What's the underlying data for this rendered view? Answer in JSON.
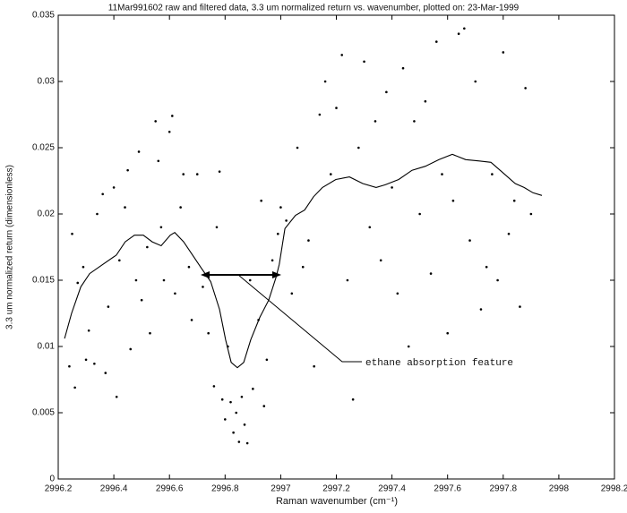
{
  "chart_data": {
    "type": "scatter",
    "title": "11Mar991602 raw and filtered data, 3.3 um normalized return vs. wavenumber, plotted on: 23-Mar-1999",
    "x_label": "Raman wavenumber (cm⁻¹)",
    "y_label": "3.3 um normalized return (dimensionless)",
    "annotation": "ethane absorption feature",
    "xlim": [
      2996.2,
      2998.2
    ],
    "ylim": [
      0,
      0.035
    ],
    "xticks": [
      2996.2,
      2996.4,
      2996.6,
      2996.8,
      2997,
      2997.2,
      2997.4,
      2997.6,
      2997.8,
      2998,
      2998.2
    ],
    "yticks": [
      0,
      0.005,
      0.01,
      0.015,
      0.02,
      0.025,
      0.03,
      0.035
    ],
    "grid": false,
    "series": [
      {
        "type": "scatter",
        "color": "#000000",
        "x": [
          2996.24,
          2996.25,
          2996.26,
          2996.27,
          2996.29,
          2996.3,
          2996.31,
          2996.33,
          2996.34,
          2996.36,
          2996.37,
          2996.38,
          2996.4,
          2996.41,
          2996.42,
          2996.44,
          2996.45,
          2996.46,
          2996.48,
          2996.49,
          2996.5,
          2996.52,
          2996.53,
          2996.55,
          2996.56,
          2996.57,
          2996.58,
          2996.6,
          2996.61,
          2996.62,
          2996.64,
          2996.65,
          2996.67,
          2996.68,
          2996.7,
          2996.72,
          2996.74,
          2996.76,
          2996.77,
          2996.78,
          2996.79,
          2996.8,
          2996.81,
          2996.82,
          2996.83,
          2996.84,
          2996.85,
          2996.86,
          2996.87,
          2996.88,
          2996.89,
          2996.9,
          2996.92,
          2996.93,
          2996.94,
          2996.95,
          2996.97,
          2996.99,
          2997.0,
          2997.02,
          2997.04,
          2997.06,
          2997.08,
          2997.1,
          2997.12,
          2997.14,
          2997.16,
          2997.18,
          2997.2,
          2997.22,
          2997.24,
          2997.26,
          2997.28,
          2997.3,
          2997.32,
          2997.34,
          2997.36,
          2997.38,
          2997.4,
          2997.42,
          2997.44,
          2997.46,
          2997.48,
          2997.5,
          2997.52,
          2997.54,
          2997.56,
          2997.58,
          2997.6,
          2997.62,
          2997.64,
          2997.66,
          2997.68,
          2997.7,
          2997.72,
          2997.74,
          2997.76,
          2997.78,
          2997.8,
          2997.82,
          2997.84,
          2997.86,
          2997.88,
          2997.9
        ],
        "values": [
          0.0085,
          0.0185,
          0.0069,
          0.0148,
          0.016,
          0.009,
          0.0112,
          0.0087,
          0.02,
          0.0215,
          0.008,
          0.013,
          0.022,
          0.0062,
          0.0165,
          0.0205,
          0.0233,
          0.0098,
          0.015,
          0.0247,
          0.0135,
          0.0175,
          0.011,
          0.027,
          0.024,
          0.019,
          0.015,
          0.0262,
          0.0274,
          0.014,
          0.0205,
          0.023,
          0.016,
          0.012,
          0.023,
          0.0145,
          0.011,
          0.007,
          0.019,
          0.0232,
          0.006,
          0.0045,
          0.01,
          0.0058,
          0.0035,
          0.005,
          0.0028,
          0.0062,
          0.0041,
          0.0027,
          0.015,
          0.0068,
          0.012,
          0.021,
          0.0055,
          0.009,
          0.0165,
          0.0185,
          0.0205,
          0.0195,
          0.014,
          0.025,
          0.016,
          0.018,
          0.0085,
          0.0275,
          0.03,
          0.023,
          0.028,
          0.032,
          0.015,
          0.006,
          0.025,
          0.0315,
          0.019,
          0.027,
          0.0165,
          0.0292,
          0.022,
          0.014,
          0.031,
          0.01,
          0.027,
          0.02,
          0.0285,
          0.0155,
          0.033,
          0.023,
          0.011,
          0.021,
          0.0336,
          0.034,
          0.018,
          0.03,
          0.0128,
          0.016,
          0.023,
          0.015,
          0.0322,
          0.0185,
          0.021,
          0.013,
          0.0295,
          0.02
        ]
      },
      {
        "type": "line",
        "color": "#000000",
        "x": [
          2996.223,
          2996.248,
          2996.281,
          2996.313,
          2996.361,
          2996.409,
          2996.441,
          2996.474,
          2996.506,
          2996.538,
          2996.57,
          2996.603,
          2996.619,
          2996.651,
          2996.683,
          2996.715,
          2996.748,
          2996.78,
          2996.802,
          2996.822,
          2996.844,
          2996.867,
          2996.892,
          2996.925,
          2996.957,
          2996.983,
          2996.995,
          2997.015,
          2997.053,
          2997.086,
          2997.118,
          2997.15,
          2997.198,
          2997.247,
          2997.295,
          2997.343,
          2997.376,
          2997.424,
          2997.472,
          2997.52,
          2997.569,
          2997.617,
          2997.665,
          2997.714,
          2997.756,
          2997.794,
          2997.843,
          2997.875,
          2997.907,
          2997.939
        ],
        "values": [
          0.0106,
          0.0125,
          0.0145,
          0.0155,
          0.0162,
          0.0169,
          0.0179,
          0.0184,
          0.0184,
          0.0179,
          0.0176,
          0.0184,
          0.0186,
          0.0179,
          0.0169,
          0.0159,
          0.0149,
          0.0128,
          0.0105,
          0.0088,
          0.0084,
          0.0088,
          0.0105,
          0.0122,
          0.0135,
          0.0152,
          0.0162,
          0.0189,
          0.0199,
          0.0203,
          0.0213,
          0.022,
          0.0226,
          0.0228,
          0.0223,
          0.022,
          0.0222,
          0.0226,
          0.0233,
          0.0236,
          0.0241,
          0.0245,
          0.0241,
          0.024,
          0.0239,
          0.0232,
          0.0223,
          0.022,
          0.0216,
          0.0214
        ]
      }
    ]
  }
}
